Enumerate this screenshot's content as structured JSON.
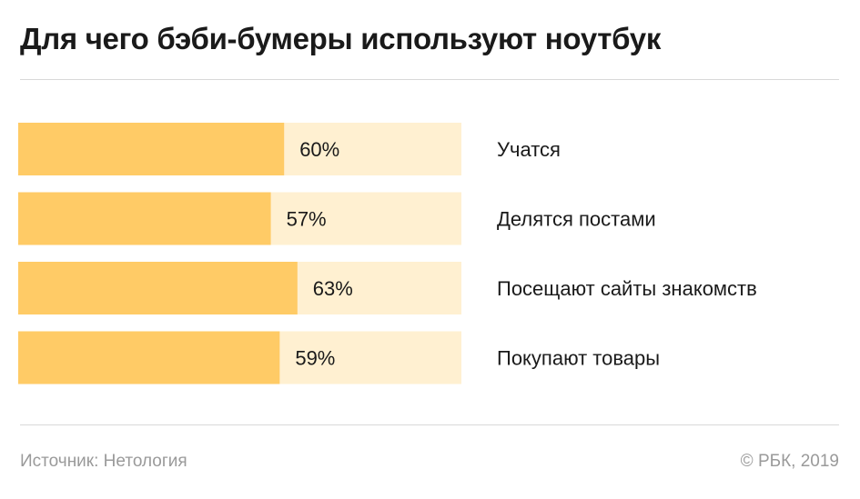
{
  "header": {
    "title": "Для чего бэби-бумеры используют ноутбук"
  },
  "chart_data": {
    "type": "bar",
    "orientation": "horizontal",
    "categories": [
      "Учатся",
      "Делятся постами",
      "Посещают сайты знакомств",
      "Покупают товары"
    ],
    "values": [
      60,
      57,
      63,
      59
    ],
    "value_labels": [
      "60%",
      "57%",
      "63%",
      "59%"
    ],
    "xlim": [
      0,
      100
    ],
    "unit": "%",
    "grid": false,
    "legend": "none",
    "colors": {
      "bar": "#ffcb66",
      "track": "#fff0d1",
      "label": "#1a1a1a"
    }
  },
  "footer": {
    "source": "Источник: Нетология",
    "copyright": "© РБК, 2019"
  }
}
